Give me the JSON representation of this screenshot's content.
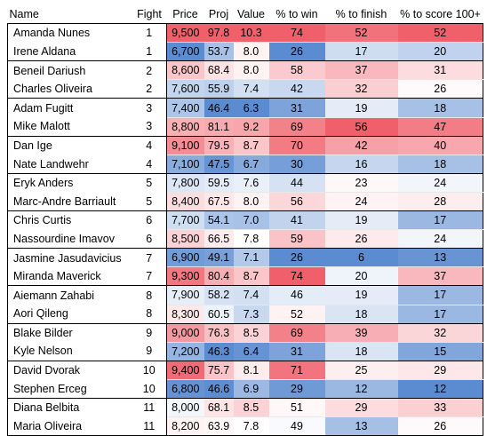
{
  "headers": [
    "Name",
    "Fight",
    "Price",
    "Proj",
    "Value",
    "% to win",
    "% to finish",
    "% to score 100+"
  ],
  "rows": [
    [
      "Amanda Nunes",
      "1",
      "9,500",
      "97.8",
      "10.3",
      "74",
      "52",
      "52"
    ],
    [
      "Irene Aldana",
      "1",
      "6,700",
      "53.7",
      "8.0",
      "26",
      "17",
      "20"
    ],
    [
      "Beneil Dariush",
      "2",
      "8,600",
      "68.4",
      "8.0",
      "58",
      "37",
      "31"
    ],
    [
      "Charles Oliveira",
      "2",
      "7,600",
      "55.9",
      "7.4",
      "42",
      "32",
      "26"
    ],
    [
      "Adam Fugitt",
      "3",
      "7,400",
      "46.4",
      "6.3",
      "31",
      "19",
      "18"
    ],
    [
      "Mike Malott",
      "3",
      "8,800",
      "81.1",
      "9.2",
      "69",
      "56",
      "47"
    ],
    [
      "Dan Ige",
      "4",
      "9,100",
      "79.5",
      "8.7",
      "70",
      "42",
      "40"
    ],
    [
      "Nate Landwehr",
      "4",
      "7,100",
      "47.5",
      "6.7",
      "30",
      "16",
      "18"
    ],
    [
      "Eryk Anders",
      "5",
      "7,800",
      "59.5",
      "7.6",
      "44",
      "23",
      "24"
    ],
    [
      "Marc-Andre Barriault",
      "5",
      "8,400",
      "67.5",
      "8.0",
      "56",
      "24",
      "28"
    ],
    [
      "Chris Curtis",
      "6",
      "7,700",
      "54.1",
      "7.0",
      "41",
      "19",
      "17"
    ],
    [
      "Nassourdine Imavov",
      "6",
      "8,500",
      "66.5",
      "7.8",
      "59",
      "26",
      "24"
    ],
    [
      "Jasmine Jasudavicius",
      "7",
      "6,900",
      "49.1",
      "7.1",
      "26",
      "6",
      "13"
    ],
    [
      "Miranda Maverick",
      "7",
      "9,300",
      "80.4",
      "8.7",
      "74",
      "20",
      "37"
    ],
    [
      "Aiemann Zahabi",
      "8",
      "7,900",
      "58.2",
      "7.4",
      "46",
      "19",
      "17"
    ],
    [
      "Aori Qileng",
      "8",
      "8,300",
      "60.5",
      "7.3",
      "52",
      "18",
      "17"
    ],
    [
      "Blake Bilder",
      "9",
      "9,000",
      "76.3",
      "8.5",
      "69",
      "39",
      "32"
    ],
    [
      "Kyle Nelson",
      "9",
      "7,200",
      "46.3",
      "6.4",
      "31",
      "18",
      "15"
    ],
    [
      "David Dvorak",
      "10",
      "9,400",
      "75.7",
      "8.1",
      "71",
      "25",
      "29"
    ],
    [
      "Stephen Erceg",
      "10",
      "6,800",
      "46.6",
      "6.9",
      "29",
      "12",
      "12"
    ],
    [
      "Diana Belbita",
      "11",
      "8,000",
      "68.1",
      "8.5",
      "51",
      "29",
      "33"
    ],
    [
      "Maria Oliveira",
      "11",
      "8,200",
      "63.9",
      "7.8",
      "49",
      "13",
      "26"
    ]
  ],
  "heat_colors": {
    "low": "#5b8bd0",
    "mid": "#ffffff",
    "high": "#f0606b"
  }
}
